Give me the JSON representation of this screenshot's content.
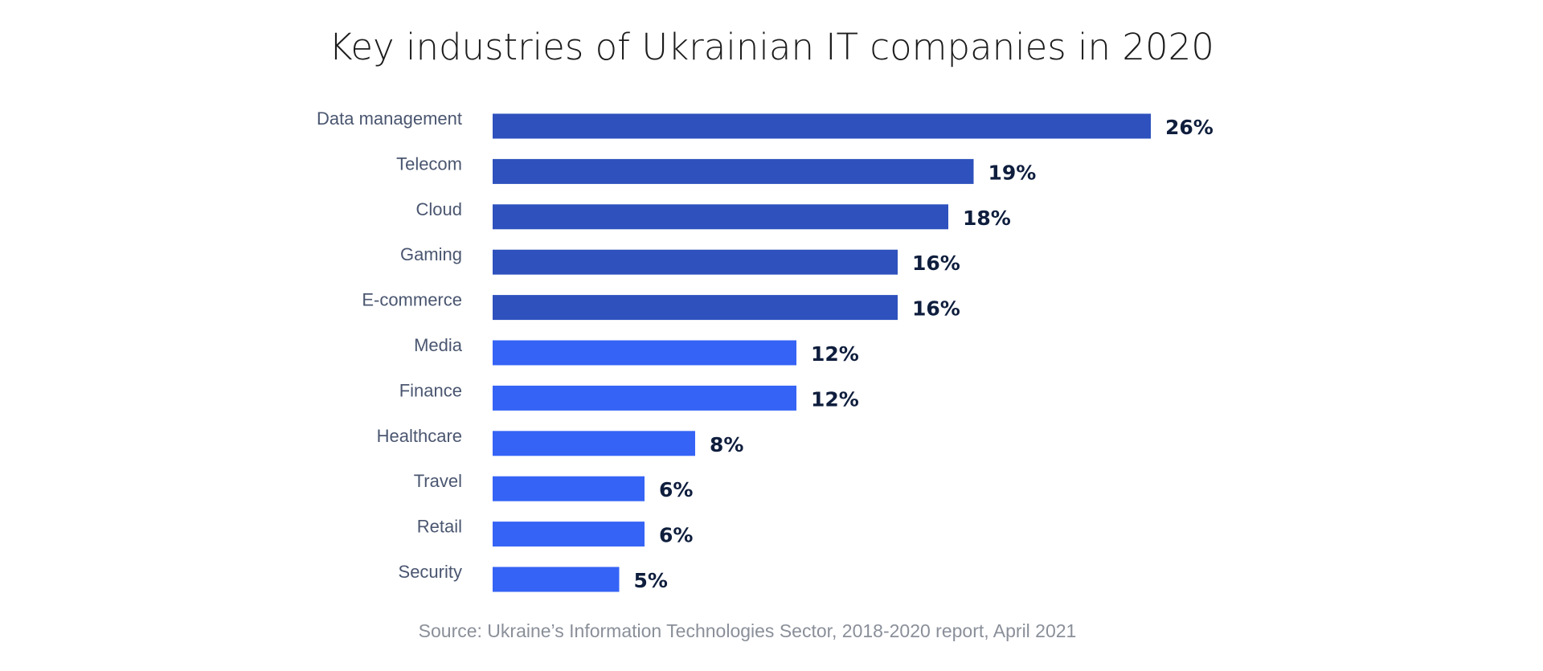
{
  "chart_data": {
    "type": "bar",
    "orientation": "horizontal",
    "title": "Key industries of Ukrainian IT companies in 2020",
    "categories": [
      "Data management",
      "Telecom",
      "Cloud",
      "Gaming",
      "E-commerce",
      "Media",
      "Finance",
      "Healthcare",
      "Travel",
      "Retail",
      "Security"
    ],
    "values": [
      26,
      19,
      18,
      16,
      16,
      12,
      12,
      8,
      6,
      6,
      5
    ],
    "data_labels": [
      "26%",
      "19%",
      "18%",
      "16%",
      "16%",
      "12%",
      "12%",
      "8%",
      "6%",
      "6%",
      "5%"
    ],
    "unit": "%",
    "xlim": [
      0,
      26
    ],
    "grid": false,
    "colors": {
      "top5": "#2e51bd",
      "rest": "#3563f5",
      "label": "#4a5670",
      "value": "#0f1e3d"
    },
    "source": "Source: Ukraine’s Information Technologies Sector, 2018-2020 report, April 2021"
  }
}
